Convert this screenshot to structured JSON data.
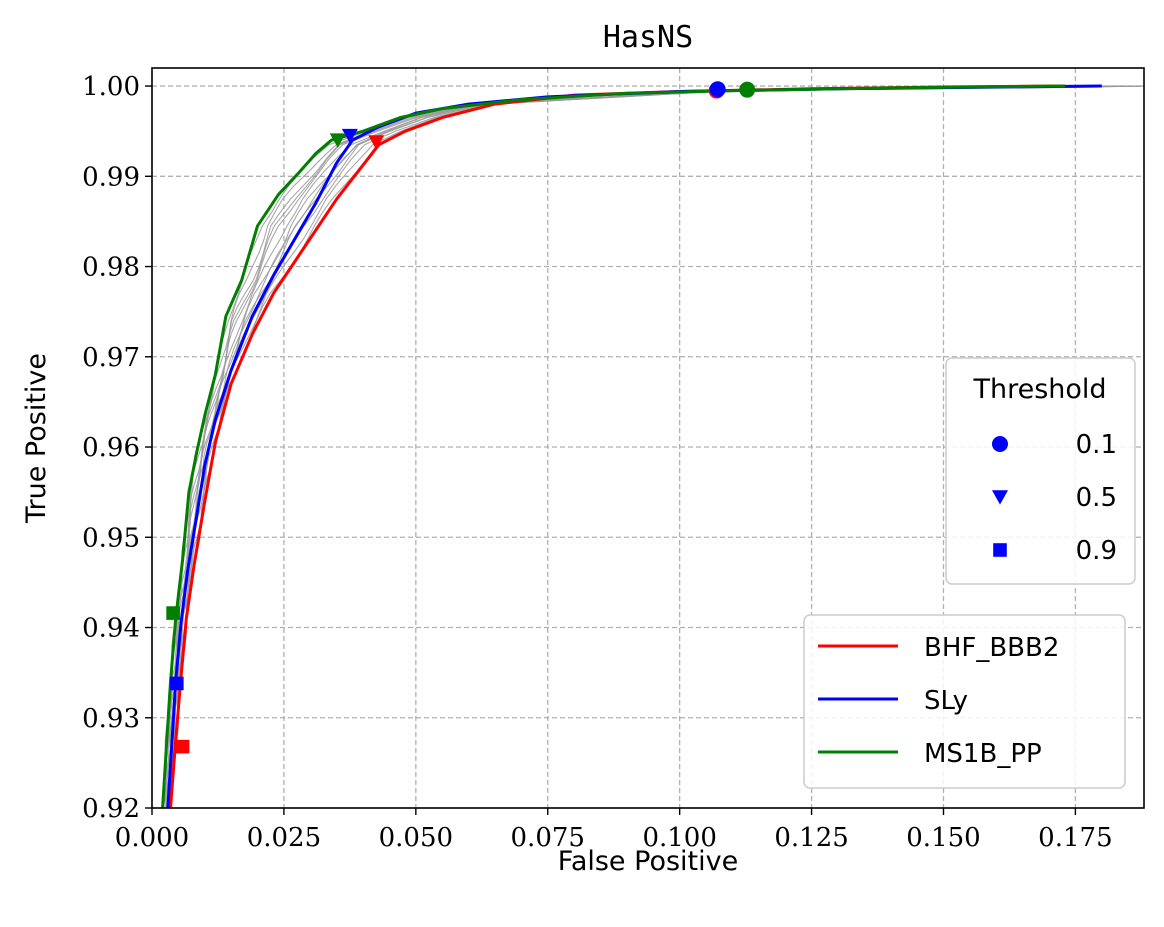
{
  "chart_data": {
    "type": "line",
    "title": "HasNS",
    "xlabel": "False Positive",
    "ylabel": "True Positive",
    "xlim": [
      0.0,
      0.188
    ],
    "ylim": [
      0.92,
      1.002
    ],
    "grid": true,
    "xticks": [
      "0.000",
      "0.025",
      "0.050",
      "0.075",
      "0.100",
      "0.125",
      "0.150",
      "0.175"
    ],
    "yticks": [
      "0.92",
      "0.93",
      "0.94",
      "0.95",
      "0.96",
      "0.97",
      "0.98",
      "0.99",
      "1.00"
    ],
    "series": [
      {
        "name": "BHF_BBB2",
        "color": "#ff0000",
        "points": [
          [
            0.0035,
            0.92
          ],
          [
            0.0045,
            0.9275
          ],
          [
            0.0055,
            0.9345
          ],
          [
            0.0065,
            0.941
          ],
          [
            0.008,
            0.947
          ],
          [
            0.01,
            0.954
          ],
          [
            0.012,
            0.9605
          ],
          [
            0.015,
            0.967
          ],
          [
            0.019,
            0.9725
          ],
          [
            0.023,
            0.977
          ],
          [
            0.027,
            0.9805
          ],
          [
            0.031,
            0.984
          ],
          [
            0.035,
            0.9875
          ],
          [
            0.039,
            0.9905
          ],
          [
            0.043,
            0.9935
          ],
          [
            0.048,
            0.995
          ],
          [
            0.055,
            0.9965
          ],
          [
            0.065,
            0.998
          ],
          [
            0.08,
            0.999
          ],
          [
            0.1,
            0.9994
          ],
          [
            0.125,
            0.9997
          ],
          [
            0.15,
            0.9999
          ],
          [
            0.173,
            1.0
          ]
        ]
      },
      {
        "name": "SLy",
        "color": "#0000ff",
        "points": [
          [
            0.003,
            0.92
          ],
          [
            0.0038,
            0.9275
          ],
          [
            0.0045,
            0.934
          ],
          [
            0.0055,
            0.9405
          ],
          [
            0.0068,
            0.9465
          ],
          [
            0.0085,
            0.9525
          ],
          [
            0.01,
            0.958
          ],
          [
            0.012,
            0.963
          ],
          [
            0.015,
            0.9685
          ],
          [
            0.019,
            0.9745
          ],
          [
            0.023,
            0.979
          ],
          [
            0.027,
            0.983
          ],
          [
            0.031,
            0.987
          ],
          [
            0.035,
            0.9915
          ],
          [
            0.038,
            0.994
          ],
          [
            0.043,
            0.9955
          ],
          [
            0.05,
            0.997
          ],
          [
            0.06,
            0.998
          ],
          [
            0.075,
            0.9988
          ],
          [
            0.1,
            0.9994
          ],
          [
            0.13,
            0.9997
          ],
          [
            0.16,
            0.9999
          ],
          [
            0.18,
            1.0
          ]
        ]
      },
      {
        "name": "MS1B_PP",
        "color": "#007f00",
        "points": [
          [
            0.002,
            0.92
          ],
          [
            0.0028,
            0.9275
          ],
          [
            0.0035,
            0.934
          ],
          [
            0.0045,
            0.941
          ],
          [
            0.0058,
            0.9475
          ],
          [
            0.007,
            0.955
          ],
          [
            0.0085,
            0.9595
          ],
          [
            0.01,
            0.9635
          ],
          [
            0.012,
            0.968
          ],
          [
            0.014,
            0.9745
          ],
          [
            0.017,
            0.9785
          ],
          [
            0.02,
            0.9845
          ],
          [
            0.024,
            0.988
          ],
          [
            0.028,
            0.9905
          ],
          [
            0.031,
            0.9925
          ],
          [
            0.034,
            0.994
          ],
          [
            0.04,
            0.995
          ],
          [
            0.047,
            0.9965
          ],
          [
            0.055,
            0.9975
          ],
          [
            0.07,
            0.9985
          ],
          [
            0.09,
            0.9992
          ],
          [
            0.11,
            0.9995
          ],
          [
            0.14,
            0.9998
          ],
          [
            0.173,
            1.0
          ]
        ]
      }
    ],
    "background_curves_color": "#999999",
    "threshold_markers": [
      {
        "series": "BHF_BBB2",
        "threshold": "0.1",
        "marker": "circle",
        "x": 0.107,
        "y": 0.9995
      },
      {
        "series": "SLy",
        "threshold": "0.1",
        "marker": "circle",
        "x": 0.1072,
        "y": 0.99965
      },
      {
        "series": "MS1B_PP",
        "threshold": "0.1",
        "marker": "circle",
        "x": 0.1128,
        "y": 0.9996
      },
      {
        "series": "BHF_BBB2",
        "threshold": "0.5",
        "marker": "triangle",
        "x": 0.0425,
        "y": 0.9938
      },
      {
        "series": "SLy",
        "threshold": "0.5",
        "marker": "triangle",
        "x": 0.0375,
        "y": 0.9945
      },
      {
        "series": "MS1B_PP",
        "threshold": "0.5",
        "marker": "triangle",
        "x": 0.0352,
        "y": 0.994
      },
      {
        "series": "BHF_BBB2",
        "threshold": "0.9",
        "marker": "square",
        "x": 0.0058,
        "y": 0.9268
      },
      {
        "series": "SLy",
        "threshold": "0.9",
        "marker": "square",
        "x": 0.0047,
        "y": 0.9338
      },
      {
        "series": "MS1B_PP",
        "threshold": "0.9",
        "marker": "square",
        "x": 0.004,
        "y": 0.9416
      }
    ],
    "threshold_legend": {
      "title": "Threshold",
      "placement": "right",
      "entries": [
        {
          "label": "0.1",
          "marker": "circle"
        },
        {
          "label": "0.5",
          "marker": "triangle"
        },
        {
          "label": "0.9",
          "marker": "square"
        }
      ]
    },
    "series_legend_placement": "lower-right"
  }
}
